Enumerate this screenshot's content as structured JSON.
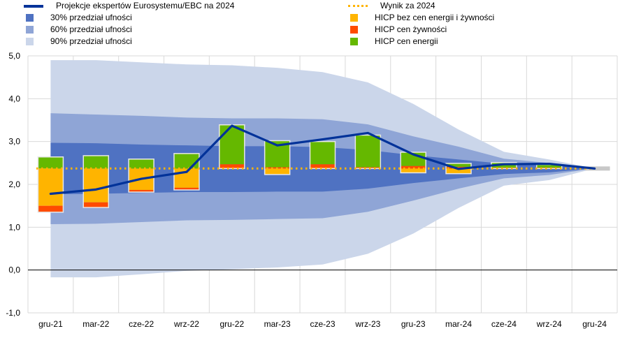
{
  "legend_left": [
    {
      "label": "Projekcje ekspertów Eurosystemu/EBC na 2024",
      "kind": "line",
      "color": "#003299"
    },
    {
      "label": "30% przedział ufności",
      "kind": "square",
      "color": "#4f72c2"
    },
    {
      "label": "60% przedział ufności",
      "kind": "square",
      "color": "#8fa5d6"
    },
    {
      "label": "90% przedział ufności",
      "kind": "square",
      "color": "#cbd6ea"
    }
  ],
  "legend_right": [
    {
      "label": "Wynik za 2024",
      "kind": "dotted",
      "color": "#ffb400"
    },
    {
      "label": "HICP bez cen energii i żywności",
      "kind": "square",
      "color": "#ffb400"
    },
    {
      "label": "HICP cen żywności",
      "kind": "square",
      "color": "#ff4b00"
    },
    {
      "label": "HICP cen energii",
      "kind": "square",
      "color": "#65b800"
    }
  ],
  "chart_data": {
    "type": "bar",
    "categories": [
      "gru-21",
      "mar-22",
      "cze-22",
      "wrz-22",
      "gru-22",
      "mar-23",
      "cze-23",
      "wrz-23",
      "gru-23",
      "mar-24",
      "cze-24",
      "wrz-24",
      "gru-24"
    ],
    "ylim": [
      -1.0,
      5.0
    ],
    "yticks": [
      "-1,0",
      "0,0",
      "1,0",
      "2,0",
      "3,0",
      "4,0",
      "5,0"
    ],
    "ytick_values": [
      -1,
      0,
      1,
      2,
      3,
      4,
      5
    ],
    "grid": true,
    "outcome_2024": 2.37,
    "projection": [
      1.78,
      1.88,
      2.13,
      2.29,
      3.37,
      2.91,
      3.05,
      3.2,
      2.7,
      2.36,
      2.47,
      2.48,
      2.37
    ],
    "bands": {
      "ci90": {
        "upper": [
          4.9,
          4.9,
          4.85,
          4.8,
          4.78,
          4.72,
          4.62,
          4.38,
          3.88,
          3.28,
          2.76,
          2.58,
          2.37
        ],
        "lower": [
          -0.17,
          -0.17,
          -0.1,
          -0.02,
          0.02,
          0.06,
          0.13,
          0.38,
          0.85,
          1.45,
          1.97,
          2.1,
          2.37
        ]
      },
      "ci60": {
        "upper": [
          3.66,
          3.63,
          3.6,
          3.56,
          3.54,
          3.54,
          3.52,
          3.4,
          3.12,
          2.88,
          2.6,
          2.5,
          2.37
        ],
        "lower": [
          1.07,
          1.08,
          1.12,
          1.16,
          1.17,
          1.19,
          1.21,
          1.36,
          1.62,
          1.9,
          2.14,
          2.22,
          2.37
        ]
      },
      "ci30": {
        "upper": [
          2.97,
          2.96,
          2.93,
          2.91,
          2.89,
          2.89,
          2.87,
          2.8,
          2.68,
          2.58,
          2.48,
          2.45,
          2.37
        ],
        "lower": [
          1.77,
          1.78,
          1.8,
          1.82,
          1.82,
          1.83,
          1.83,
          1.9,
          2.03,
          2.14,
          2.24,
          2.28,
          2.37
        ]
      }
    },
    "series": [
      {
        "name": "HICP bez cen energii i żywności",
        "color": "#ffb400",
        "values": [
          -0.87,
          -0.79,
          -0.5,
          -0.45,
          0.0,
          -0.14,
          0.0,
          0.0,
          -0.1,
          -0.12,
          0.0,
          0.0,
          0.0
        ]
      },
      {
        "name": "HICP cen żywności",
        "color": "#ff4b00",
        "values": [
          -0.15,
          -0.12,
          -0.05,
          -0.05,
          0.1,
          0.03,
          0.1,
          0.03,
          0.06,
          0.04,
          0.02,
          0.02,
          0.0
        ]
      },
      {
        "name": "HICP cen energii",
        "color": "#65b800",
        "values": [
          0.27,
          0.3,
          0.22,
          0.35,
          0.92,
          0.62,
          0.53,
          0.75,
          0.32,
          0.08,
          0.12,
          0.07,
          0.0
        ]
      }
    ]
  }
}
